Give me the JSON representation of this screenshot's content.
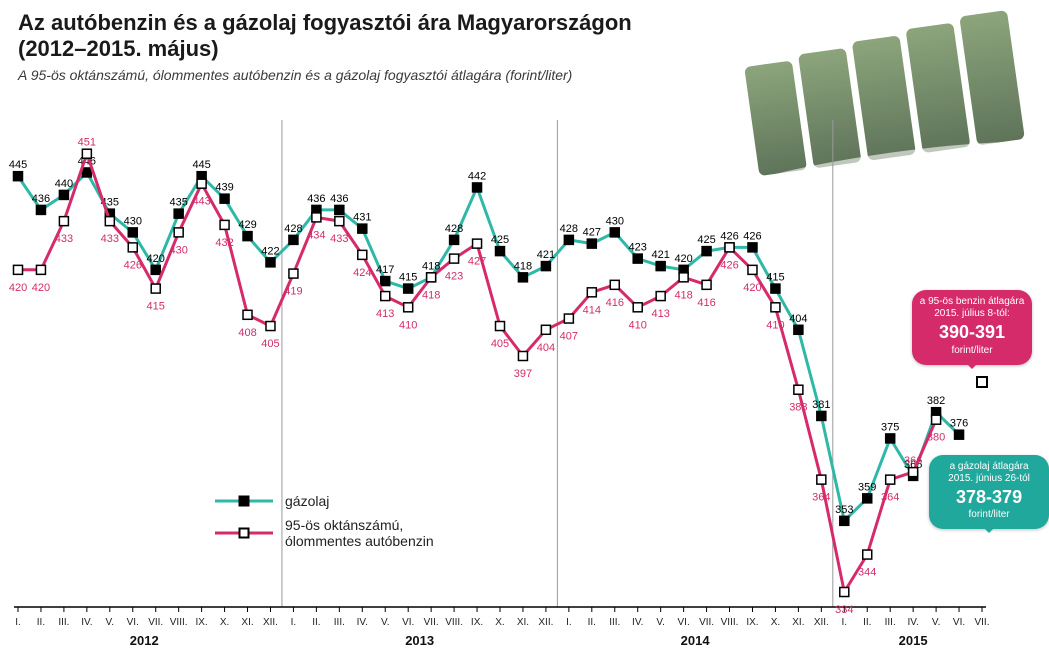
{
  "meta": {
    "title_line1": "Az autóbenzin és a gázolaj fogyasztói ára Magyarországon",
    "title_line2": "(2012–2015. május)",
    "subtitle": "A 95-ös oktánszámú, ólommentes autóbenzin és a gázolaj fogyasztói átlagára (forint/liter)"
  },
  "colors": {
    "background": "#ffffff",
    "diesel_line": "#2fb8a8",
    "diesel_marker_fill": "#000000",
    "petrol_line": "#d62b6b",
    "petrol_marker_fill": "#ffffff",
    "marker_stroke": "#000000",
    "year_sep": "#999999",
    "axis": "#000000",
    "diesel_label": "#000000",
    "petrol_label": "#d62b6b",
    "bubble_petrol": "#d62b6b",
    "bubble_diesel": "#1fa89b",
    "deco_green": "#4a6b3a"
  },
  "legend": {
    "diesel": "gázolaj",
    "petrol_line1": "95-ös oktánszámú,",
    "petrol_line2": "ólommentes autóbenzin"
  },
  "bubbles": {
    "petrol": {
      "pre": "a 95-ös benzin átlagára",
      "date": "2015. július 8-tól:",
      "price": "390-391",
      "unit": "forint/liter"
    },
    "diesel": {
      "pre": "a gázolaj átlagára",
      "date": "2015. június 26-tól",
      "price": "378-379",
      "unit": "forint/liter"
    }
  },
  "chart": {
    "type": "line",
    "ylim": [
      330,
      460
    ],
    "x_months": [
      "I.",
      "II.",
      "III.",
      "IV.",
      "V.",
      "VI.",
      "VII.",
      "VIII.",
      "IX.",
      "X.",
      "XI.",
      "XII."
    ],
    "years": [
      {
        "label": "2012",
        "count": 12
      },
      {
        "label": "2013",
        "count": 12
      },
      {
        "label": "2014",
        "count": 12
      },
      {
        "label": "2015",
        "count": 7
      }
    ],
    "line_width": 3,
    "marker_size": 9,
    "label_fontsize": 11,
    "month_fontsize": 10,
    "year_fontsize": 13
  },
  "series": {
    "diesel": [
      445,
      436,
      440,
      446,
      435,
      430,
      420,
      435,
      445,
      439,
      429,
      422,
      428,
      436,
      436,
      431,
      417,
      415,
      418,
      428,
      442,
      425,
      418,
      421,
      428,
      427,
      430,
      423,
      421,
      420,
      425,
      426,
      426,
      415,
      404,
      381,
      353,
      359,
      375,
      365,
      382,
      376,
      null
    ],
    "petrol": [
      420,
      420,
      433,
      451,
      433,
      426,
      415,
      430,
      443,
      432,
      408,
      405,
      419,
      434,
      433,
      424,
      413,
      410,
      418,
      423,
      427,
      405,
      397,
      404,
      407,
      414,
      416,
      410,
      413,
      418,
      416,
      426,
      420,
      410,
      388,
      364,
      334,
      344,
      364,
      366,
      380,
      null,
      null
    ]
  },
  "future_points": {
    "petrol": {
      "month_index": 42,
      "value": 390
    }
  }
}
